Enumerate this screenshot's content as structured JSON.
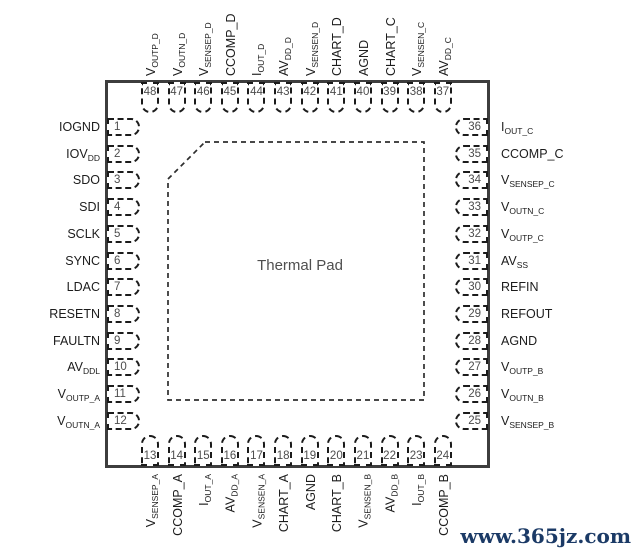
{
  "diagram": {
    "type": "qfn-48-package-pinout",
    "thermal_pad_label": "Thermal Pad",
    "watermark": "www.365jz.com"
  },
  "colors": {
    "pin_outline": "#1b1b1b",
    "pin_number": "#4d4d4d",
    "label": "#1c1c1c",
    "package_border": "#3d3d3d",
    "thermal_pad_outline": "#2e2e2e",
    "watermark": "#1b3a66"
  },
  "pins": {
    "left_top_to_bottom": [
      {
        "num": "1",
        "main": "IOGND",
        "sub": ""
      },
      {
        "num": "2",
        "main": "IOV",
        "sub": "DD"
      },
      {
        "num": "3",
        "main": "SDO",
        "sub": ""
      },
      {
        "num": "4",
        "main": "SDI",
        "sub": ""
      },
      {
        "num": "5",
        "main": "SCLK",
        "sub": ""
      },
      {
        "num": "6",
        "main": "SYNC",
        "sub": ""
      },
      {
        "num": "7",
        "main": "LDAC",
        "sub": ""
      },
      {
        "num": "8",
        "main": "RESETN",
        "sub": ""
      },
      {
        "num": "9",
        "main": "FAULTN",
        "sub": ""
      },
      {
        "num": "10",
        "main": "AV",
        "sub": "DDL"
      },
      {
        "num": "11",
        "main": "V",
        "sub": "OUTP_A"
      },
      {
        "num": "12",
        "main": "V",
        "sub": "OUTN_A"
      }
    ],
    "top_left_to_right": [
      {
        "num": "48",
        "main": "V",
        "sub": "OUTP_D"
      },
      {
        "num": "47",
        "main": "V",
        "sub": "OUTN_D"
      },
      {
        "num": "46",
        "main": "V",
        "sub": "SENSEP_D"
      },
      {
        "num": "45",
        "main": "CCOMP_D",
        "sub": ""
      },
      {
        "num": "44",
        "main": "I",
        "sub": "OUT_D"
      },
      {
        "num": "43",
        "main": "AV",
        "sub": "DD_D"
      },
      {
        "num": "42",
        "main": "V",
        "sub": "SENSEN_D"
      },
      {
        "num": "41",
        "main": "CHART_D",
        "sub": ""
      },
      {
        "num": "40",
        "main": "AGND",
        "sub": ""
      },
      {
        "num": "39",
        "main": "CHART_C",
        "sub": ""
      },
      {
        "num": "38",
        "main": "V",
        "sub": "SENSEN_C"
      },
      {
        "num": "37",
        "main": "AV",
        "sub": "DD_C"
      }
    ],
    "right_top_to_bottom": [
      {
        "num": "36",
        "main": "I",
        "sub": "OUT_C"
      },
      {
        "num": "35",
        "main": "CCOMP_C",
        "sub": ""
      },
      {
        "num": "34",
        "main": "V",
        "sub": "SENSEP_C"
      },
      {
        "num": "33",
        "main": "V",
        "sub": "OUTN_C"
      },
      {
        "num": "32",
        "main": "V",
        "sub": "OUTP_C"
      },
      {
        "num": "31",
        "main": "AV",
        "sub": "SS"
      },
      {
        "num": "30",
        "main": "REFIN",
        "sub": ""
      },
      {
        "num": "29",
        "main": "REFOUT",
        "sub": ""
      },
      {
        "num": "28",
        "main": "AGND",
        "sub": ""
      },
      {
        "num": "27",
        "main": "V",
        "sub": "OUTP_B"
      },
      {
        "num": "26",
        "main": "V",
        "sub": "OUTN_B"
      },
      {
        "num": "25",
        "main": "V",
        "sub": "SENSEP_B"
      }
    ],
    "bottom_left_to_right": [
      {
        "num": "13",
        "main": "V",
        "sub": "SENSEP_A"
      },
      {
        "num": "14",
        "main": "CCOMP_A",
        "sub": ""
      },
      {
        "num": "15",
        "main": "I",
        "sub": "OUT_A"
      },
      {
        "num": "16",
        "main": "AV",
        "sub": "DD_A"
      },
      {
        "num": "17",
        "main": "V",
        "sub": "SENSEN_A"
      },
      {
        "num": "18",
        "main": "CHART_A",
        "sub": ""
      },
      {
        "num": "19",
        "main": "AGND",
        "sub": ""
      },
      {
        "num": "20",
        "main": "CHART_B",
        "sub": ""
      },
      {
        "num": "21",
        "main": "V",
        "sub": "SENSEN_B"
      },
      {
        "num": "22",
        "main": "AV",
        "sub": "DD_B"
      },
      {
        "num": "23",
        "main": "I",
        "sub": "OUT_B"
      },
      {
        "num": "24",
        "main": "CCOMP_B",
        "sub": ""
      }
    ]
  }
}
